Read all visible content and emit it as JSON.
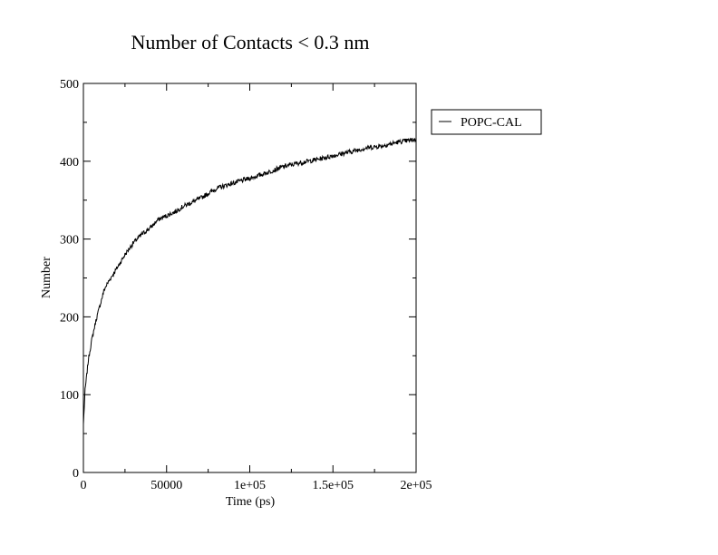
{
  "chart_data": {
    "type": "line",
    "title": "Number of Contacts < 0.3 nm",
    "xlabel": "Time (ps)",
    "ylabel": "Number",
    "xlim": [
      0,
      200000
    ],
    "ylim": [
      0,
      500
    ],
    "x_ticks": [
      0,
      50000,
      100000,
      150000,
      200000
    ],
    "x_tick_labels": [
      "0",
      "50000",
      "1e+05",
      "1.5e+05",
      "2e+05"
    ],
    "y_ticks": [
      0,
      100,
      200,
      300,
      400,
      500
    ],
    "y_tick_labels": [
      "0",
      "100",
      "200",
      "300",
      "400",
      "500"
    ],
    "grid": false,
    "legend_position": "right",
    "series": [
      {
        "name": "POPC-CAL",
        "color": "#000000",
        "x": [
          0,
          1000,
          2000,
          3000,
          5000,
          7500,
          10000,
          12500,
          15000,
          20000,
          25000,
          30000,
          35000,
          40000,
          45000,
          50000,
          55000,
          60000,
          70000,
          80000,
          90000,
          100000,
          110000,
          120000,
          130000,
          140000,
          150000,
          160000,
          170000,
          180000,
          190000,
          200000
        ],
        "y": [
          62,
          105,
          125,
          145,
          170,
          195,
          215,
          235,
          245,
          262,
          280,
          295,
          306,
          314,
          325,
          330,
          335,
          342,
          352,
          365,
          372,
          378,
          385,
          393,
          398,
          402,
          407,
          412,
          417,
          420,
          425,
          428
        ]
      }
    ]
  },
  "colors": {
    "background": "#ffffff",
    "axis": "#000000",
    "series": "#000000"
  }
}
